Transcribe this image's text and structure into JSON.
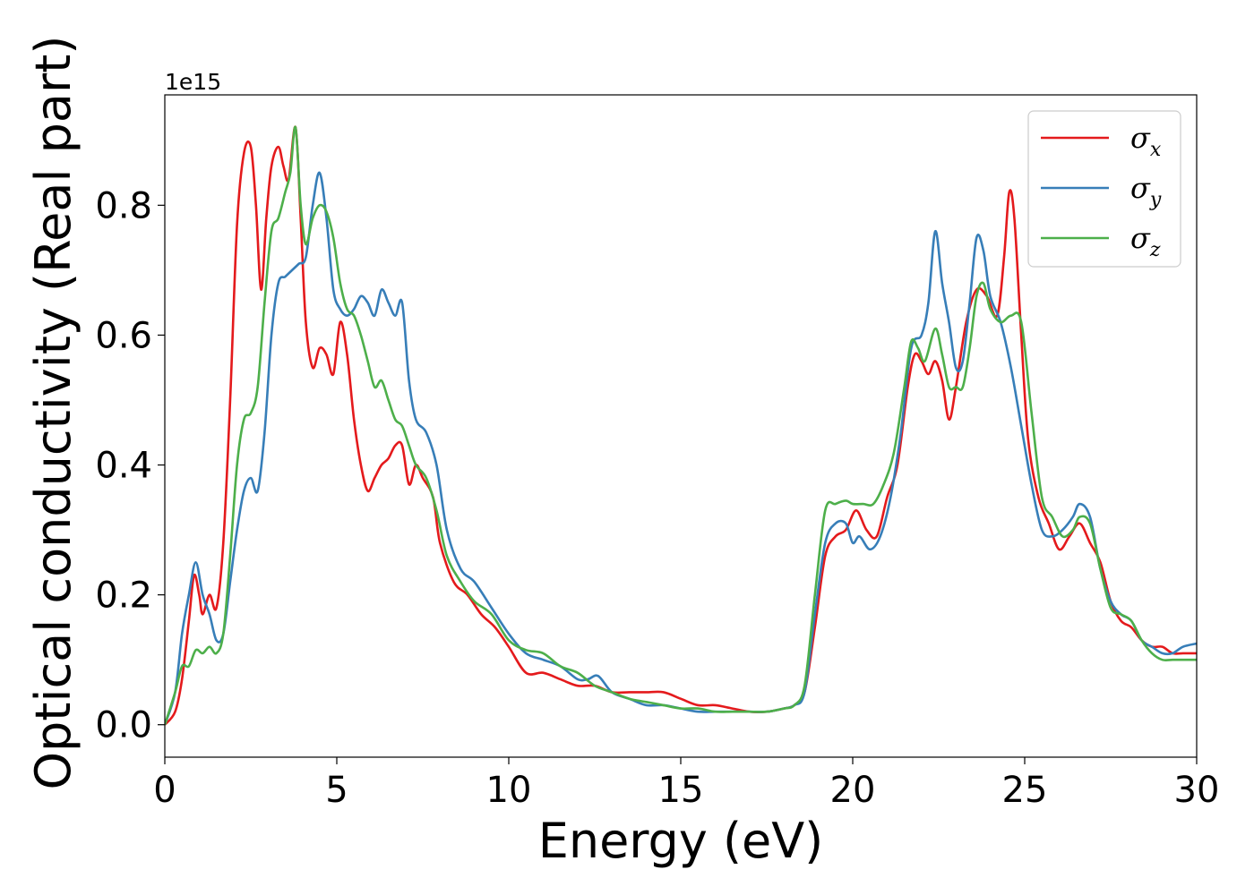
{
  "chart_data": {
    "type": "line",
    "xlabel": "Energy (eV)",
    "ylabel": "Optical conductivity (Real part)",
    "y_offset_label": "1e15",
    "xlim": [
      0,
      30
    ],
    "ylim": [
      -0.05,
      0.97
    ],
    "y_scale_factor": 1000000000000000.0,
    "xticks": [
      0,
      5,
      10,
      15,
      20,
      25,
      30
    ],
    "xtick_labels": [
      "0",
      "5",
      "10",
      "15",
      "20",
      "25",
      "30"
    ],
    "yticks": [
      0.0,
      0.2,
      0.4,
      0.6,
      0.8
    ],
    "ytick_labels": [
      "0.0",
      "0.2",
      "0.4",
      "0.6",
      "0.8"
    ],
    "grid": false,
    "legend_position": "top-right",
    "series": [
      {
        "name": "σ",
        "subscript": "x",
        "color": "#e41a1c",
        "x": [
          0,
          0.3,
          0.5,
          0.7,
          0.85,
          1.0,
          1.1,
          1.3,
          1.5,
          1.7,
          1.9,
          2.1,
          2.3,
          2.5,
          2.65,
          2.8,
          2.95,
          3.1,
          3.3,
          3.45,
          3.6,
          3.8,
          3.95,
          4.1,
          4.3,
          4.5,
          4.7,
          4.9,
          5.1,
          5.3,
          5.5,
          5.7,
          5.9,
          6.1,
          6.3,
          6.5,
          6.7,
          6.9,
          7.1,
          7.3,
          7.5,
          7.8,
          8.0,
          8.4,
          8.8,
          9.2,
          9.6,
          10.0,
          10.5,
          11.0,
          11.5,
          12.0,
          12.5,
          13.0,
          13.5,
          14.0,
          14.5,
          15.0,
          15.5,
          16.0,
          16.5,
          17.0,
          17.5,
          18.0,
          18.3,
          18.6,
          18.9,
          19.2,
          19.5,
          19.8,
          20.1,
          20.4,
          20.7,
          21.0,
          21.3,
          21.6,
          21.8,
          22.0,
          22.2,
          22.4,
          22.6,
          22.8,
          23.0,
          23.3,
          23.6,
          23.9,
          24.2,
          24.4,
          24.55,
          24.7,
          24.9,
          25.1,
          25.4,
          25.7,
          26.0,
          26.3,
          26.6,
          26.9,
          27.2,
          27.5,
          27.8,
          28.1,
          28.4,
          28.7,
          29.0,
          29.3,
          29.6,
          30.0
        ],
        "values": [
          0.0,
          0.02,
          0.07,
          0.16,
          0.23,
          0.2,
          0.17,
          0.2,
          0.18,
          0.28,
          0.5,
          0.77,
          0.88,
          0.89,
          0.8,
          0.67,
          0.78,
          0.86,
          0.89,
          0.86,
          0.84,
          0.92,
          0.78,
          0.62,
          0.55,
          0.58,
          0.57,
          0.54,
          0.62,
          0.57,
          0.47,
          0.4,
          0.36,
          0.38,
          0.4,
          0.41,
          0.43,
          0.43,
          0.37,
          0.4,
          0.38,
          0.35,
          0.28,
          0.22,
          0.2,
          0.17,
          0.15,
          0.12,
          0.08,
          0.08,
          0.07,
          0.06,
          0.06,
          0.05,
          0.05,
          0.05,
          0.05,
          0.04,
          0.03,
          0.03,
          0.025,
          0.02,
          0.02,
          0.025,
          0.03,
          0.05,
          0.15,
          0.26,
          0.29,
          0.3,
          0.33,
          0.3,
          0.29,
          0.35,
          0.4,
          0.52,
          0.57,
          0.56,
          0.54,
          0.56,
          0.53,
          0.47,
          0.52,
          0.62,
          0.67,
          0.66,
          0.63,
          0.72,
          0.82,
          0.78,
          0.6,
          0.44,
          0.35,
          0.31,
          0.27,
          0.29,
          0.31,
          0.28,
          0.25,
          0.19,
          0.16,
          0.15,
          0.13,
          0.12,
          0.12,
          0.11,
          0.11,
          0.11
        ]
      },
      {
        "name": "σ",
        "subscript": "y",
        "color": "#377eb8",
        "x": [
          0,
          0.3,
          0.5,
          0.7,
          0.9,
          1.1,
          1.3,
          1.5,
          1.7,
          1.9,
          2.1,
          2.3,
          2.5,
          2.7,
          2.9,
          3.1,
          3.3,
          3.5,
          3.7,
          3.9,
          4.1,
          4.3,
          4.5,
          4.7,
          4.9,
          5.1,
          5.3,
          5.5,
          5.7,
          5.9,
          6.1,
          6.3,
          6.5,
          6.7,
          6.9,
          7.1,
          7.3,
          7.6,
          7.9,
          8.2,
          8.6,
          9.0,
          9.5,
          10.0,
          10.5,
          11.0,
          11.5,
          12.0,
          12.3,
          12.6,
          13.0,
          13.5,
          14.0,
          14.5,
          15.0,
          15.5,
          16.0,
          16.5,
          17.0,
          17.5,
          18.0,
          18.3,
          18.6,
          18.9,
          19.2,
          19.5,
          19.8,
          20.0,
          20.2,
          20.5,
          20.8,
          21.1,
          21.4,
          21.7,
          22.0,
          22.2,
          22.4,
          22.6,
          22.8,
          23.0,
          23.2,
          23.4,
          23.6,
          23.8,
          24.0,
          24.3,
          24.6,
          24.9,
          25.2,
          25.5,
          25.8,
          26.1,
          26.4,
          26.6,
          26.9,
          27.2,
          27.5,
          27.8,
          28.1,
          28.4,
          28.7,
          29.0,
          29.3,
          29.6,
          30.0
        ],
        "values": [
          0.0,
          0.05,
          0.14,
          0.2,
          0.25,
          0.2,
          0.17,
          0.13,
          0.14,
          0.22,
          0.3,
          0.36,
          0.38,
          0.36,
          0.45,
          0.6,
          0.68,
          0.69,
          0.7,
          0.71,
          0.72,
          0.8,
          0.85,
          0.78,
          0.67,
          0.64,
          0.63,
          0.64,
          0.66,
          0.65,
          0.63,
          0.67,
          0.65,
          0.63,
          0.65,
          0.53,
          0.47,
          0.45,
          0.4,
          0.3,
          0.24,
          0.22,
          0.18,
          0.14,
          0.11,
          0.1,
          0.09,
          0.07,
          0.07,
          0.075,
          0.05,
          0.04,
          0.03,
          0.03,
          0.025,
          0.02,
          0.02,
          0.02,
          0.02,
          0.02,
          0.025,
          0.03,
          0.05,
          0.17,
          0.28,
          0.31,
          0.31,
          0.28,
          0.29,
          0.27,
          0.29,
          0.35,
          0.45,
          0.58,
          0.6,
          0.65,
          0.76,
          0.68,
          0.62,
          0.55,
          0.56,
          0.65,
          0.75,
          0.73,
          0.66,
          0.62,
          0.55,
          0.46,
          0.37,
          0.3,
          0.29,
          0.3,
          0.32,
          0.34,
          0.32,
          0.24,
          0.19,
          0.17,
          0.16,
          0.13,
          0.12,
          0.11,
          0.11,
          0.12,
          0.125
        ]
      },
      {
        "name": "σ",
        "subscript": "z",
        "color": "#4daf4a",
        "x": [
          0,
          0.3,
          0.5,
          0.7,
          0.9,
          1.1,
          1.3,
          1.5,
          1.7,
          1.9,
          2.1,
          2.3,
          2.5,
          2.7,
          2.9,
          3.1,
          3.3,
          3.5,
          3.65,
          3.8,
          3.95,
          4.1,
          4.3,
          4.5,
          4.7,
          4.9,
          5.1,
          5.3,
          5.5,
          5.7,
          5.9,
          6.1,
          6.3,
          6.5,
          6.7,
          6.9,
          7.1,
          7.3,
          7.6,
          7.9,
          8.2,
          8.6,
          9.0,
          9.5,
          10.0,
          10.5,
          11.0,
          11.5,
          12.0,
          12.5,
          13.0,
          13.5,
          14.0,
          14.5,
          15.0,
          15.5,
          16.0,
          16.5,
          17.0,
          17.5,
          18.0,
          18.3,
          18.6,
          18.9,
          19.2,
          19.5,
          19.8,
          20.0,
          20.3,
          20.6,
          20.9,
          21.2,
          21.5,
          21.7,
          21.9,
          22.1,
          22.4,
          22.6,
          22.8,
          23.0,
          23.2,
          23.4,
          23.6,
          23.8,
          24.0,
          24.3,
          24.6,
          24.9,
          25.2,
          25.5,
          25.8,
          26.1,
          26.4,
          26.6,
          26.9,
          27.2,
          27.5,
          27.8,
          28.1,
          28.4,
          28.7,
          29.0,
          29.3,
          29.6,
          30.0
        ],
        "values": [
          0.0,
          0.05,
          0.09,
          0.09,
          0.115,
          0.11,
          0.12,
          0.11,
          0.14,
          0.26,
          0.4,
          0.47,
          0.48,
          0.52,
          0.65,
          0.76,
          0.78,
          0.82,
          0.85,
          0.92,
          0.8,
          0.74,
          0.78,
          0.8,
          0.79,
          0.75,
          0.68,
          0.64,
          0.63,
          0.6,
          0.56,
          0.52,
          0.53,
          0.5,
          0.47,
          0.46,
          0.43,
          0.4,
          0.38,
          0.33,
          0.26,
          0.22,
          0.19,
          0.17,
          0.13,
          0.115,
          0.11,
          0.09,
          0.08,
          0.06,
          0.05,
          0.04,
          0.035,
          0.03,
          0.025,
          0.025,
          0.02,
          0.02,
          0.02,
          0.02,
          0.025,
          0.03,
          0.06,
          0.2,
          0.33,
          0.34,
          0.345,
          0.34,
          0.34,
          0.34,
          0.37,
          0.42,
          0.52,
          0.59,
          0.58,
          0.56,
          0.61,
          0.57,
          0.52,
          0.52,
          0.52,
          0.58,
          0.66,
          0.68,
          0.64,
          0.62,
          0.63,
          0.62,
          0.48,
          0.35,
          0.32,
          0.29,
          0.3,
          0.32,
          0.31,
          0.24,
          0.18,
          0.17,
          0.16,
          0.13,
          0.11,
          0.1,
          0.1,
          0.1,
          0.1
        ]
      }
    ]
  }
}
